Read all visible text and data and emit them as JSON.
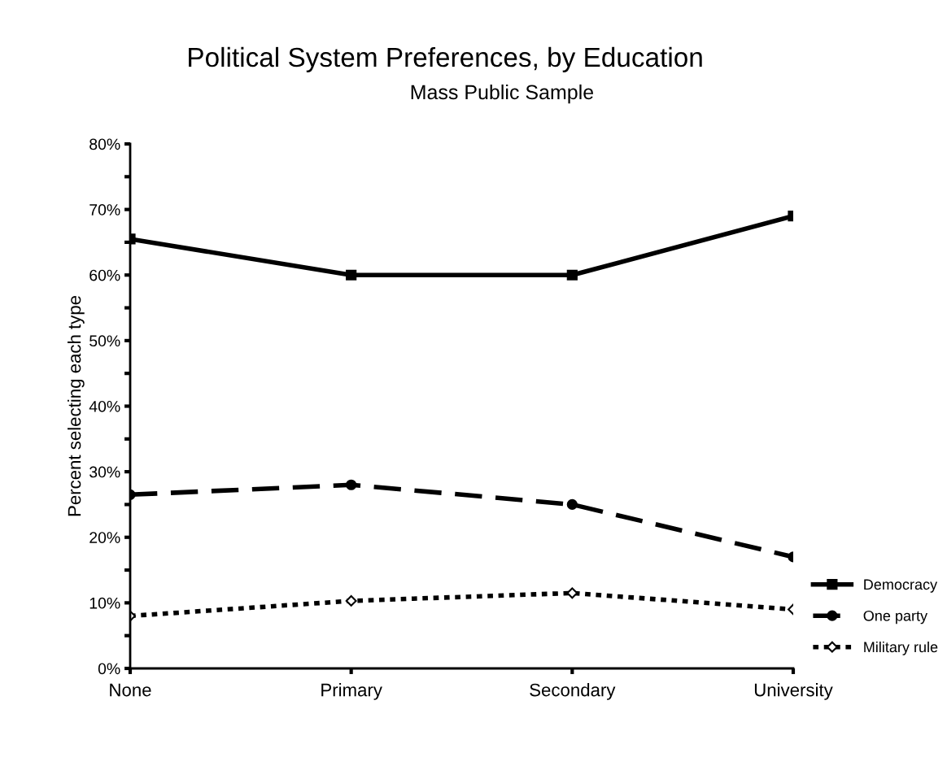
{
  "chart_data": {
    "type": "line",
    "title": "Political System Preferences, by Education",
    "subtitle": "Mass Public Sample",
    "ylabel": "Percent selecting each type",
    "categories": [
      "None",
      "Primary",
      "Secondary",
      "University"
    ],
    "series": [
      {
        "name": "Democracy",
        "color": "#000000",
        "values": [
          65.5,
          60,
          60,
          69
        ],
        "marker": "square",
        "line_style": "solid"
      },
      {
        "name": "One party",
        "color": "#000000",
        "values": [
          26.5,
          28,
          25,
          17
        ],
        "marker": "circle",
        "line_style": "dashed"
      },
      {
        "name": "Military rule",
        "color": "#000000",
        "values": [
          8,
          10.3,
          11.5,
          9
        ],
        "marker": "diamond",
        "line_style": "dotted"
      }
    ],
    "ylim": [
      0,
      80
    ],
    "yticks": [
      {
        "value": 0,
        "label": "0%"
      },
      {
        "value": 5,
        "label": null
      },
      {
        "value": 10,
        "label": "10%"
      },
      {
        "value": 15,
        "label": null
      },
      {
        "value": 20,
        "label": "20%"
      },
      {
        "value": 25,
        "label": null
      },
      {
        "value": 30,
        "label": "30%"
      },
      {
        "value": 35,
        "label": null
      },
      {
        "value": 40,
        "label": "40%"
      },
      {
        "value": 45,
        "label": null
      },
      {
        "value": 50,
        "label": "50%"
      },
      {
        "value": 55,
        "label": null
      },
      {
        "value": 60,
        "label": "60%"
      },
      {
        "value": 65,
        "label": null
      },
      {
        "value": 70,
        "label": "70%"
      },
      {
        "value": 75,
        "label": null
      },
      {
        "value": 80,
        "label": "80%"
      }
    ],
    "grid": false,
    "legend": "bottom right"
  }
}
